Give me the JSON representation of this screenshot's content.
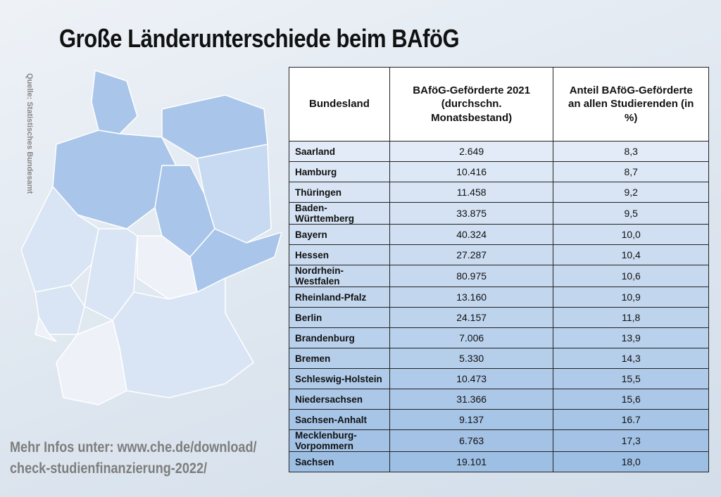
{
  "title": "Große Länderunterschiede beim BAföG",
  "source": "Quelle: Statistisches Bundesamt",
  "footer": {
    "line1": "Mehr Infos unter: www.che.de/download/",
    "line2": "check-studienfinanzierung-2022/"
  },
  "table": {
    "headers": [
      "Bundesland",
      "BAföG-Geförderte 2021 (durchschn. Monatsbestand)",
      "Anteil BAföG-Geförderte an allen Studierenden (in %)"
    ],
    "rows": [
      [
        "Saarland",
        "2.649",
        "8,3"
      ],
      [
        "Hamburg",
        "10.416",
        "8,7"
      ],
      [
        "Thüringen",
        "11.458",
        "9,2"
      ],
      [
        "Baden-Württemberg",
        "33.875",
        "9,5"
      ],
      [
        "Bayern",
        "40.324",
        "10,0"
      ],
      [
        "Hessen",
        "27.287",
        "10,4"
      ],
      [
        "Nordrhein-Westfalen",
        "80.975",
        "10,6"
      ],
      [
        "Rheinland-Pfalz",
        "13.160",
        "10,9"
      ],
      [
        "Berlin",
        "24.157",
        "11,8"
      ],
      [
        "Brandenburg",
        "7.006",
        "13,9"
      ],
      [
        "Bremen",
        "5.330",
        "14,3"
      ],
      [
        "Schleswig-Holstein",
        "10.473",
        "15,5"
      ],
      [
        "Niedersachsen",
        "31.366",
        "15,6"
      ],
      [
        "Sachsen-Anhalt",
        "9.137",
        "16.7"
      ],
      [
        "Mecklenburg-Vorpommern",
        "6.763",
        "17,3"
      ],
      [
        "Sachsen",
        "19.101",
        "18,0"
      ]
    ]
  }
}
